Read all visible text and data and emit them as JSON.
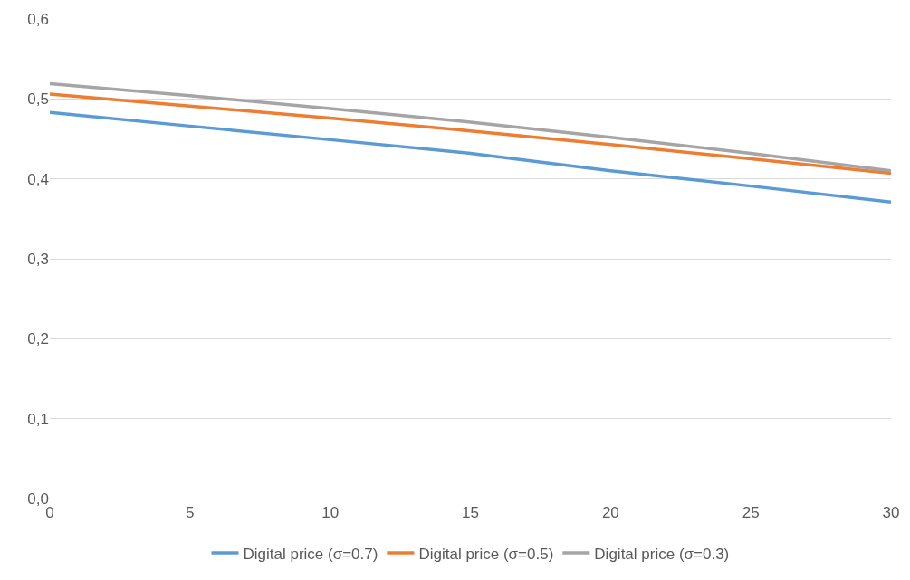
{
  "chart_data": {
    "type": "line",
    "x": [
      0,
      5,
      10,
      15,
      20,
      25,
      30
    ],
    "series": [
      {
        "name": "Digital price (σ=0.7)",
        "color": "#5b9bd5",
        "values": [
          0.483,
          0.466,
          0.449,
          0.432,
          0.41,
          0.391,
          0.371
        ]
      },
      {
        "name": "Digital price (σ=0.5)",
        "color": "#ed7d31",
        "values": [
          0.506,
          0.491,
          0.476,
          0.46,
          0.443,
          0.425,
          0.407
        ]
      },
      {
        "name": "Digital price (σ=0.3)",
        "color": "#a5a5a5",
        "values": [
          0.519,
          0.504,
          0.488,
          0.471,
          0.452,
          0.432,
          0.41
        ]
      }
    ],
    "xlim": [
      0,
      30
    ],
    "xticks": [
      0,
      5,
      10,
      15,
      20,
      25,
      30
    ],
    "ylim": [
      0,
      0.6
    ],
    "yticks": [
      {
        "value": 0,
        "label": "0,0"
      },
      {
        "value": 0.1,
        "label": "0,1"
      },
      {
        "value": 0.2,
        "label": "0,2"
      },
      {
        "value": 0.3,
        "label": "0,3"
      },
      {
        "value": 0.4,
        "label": "0,4"
      },
      {
        "value": 0.5,
        "label": "0,5"
      },
      {
        "value": 0.6,
        "label": "0,6"
      }
    ],
    "grid": "y",
    "legend": "bottom",
    "marker": "none",
    "line_style": "solid"
  }
}
